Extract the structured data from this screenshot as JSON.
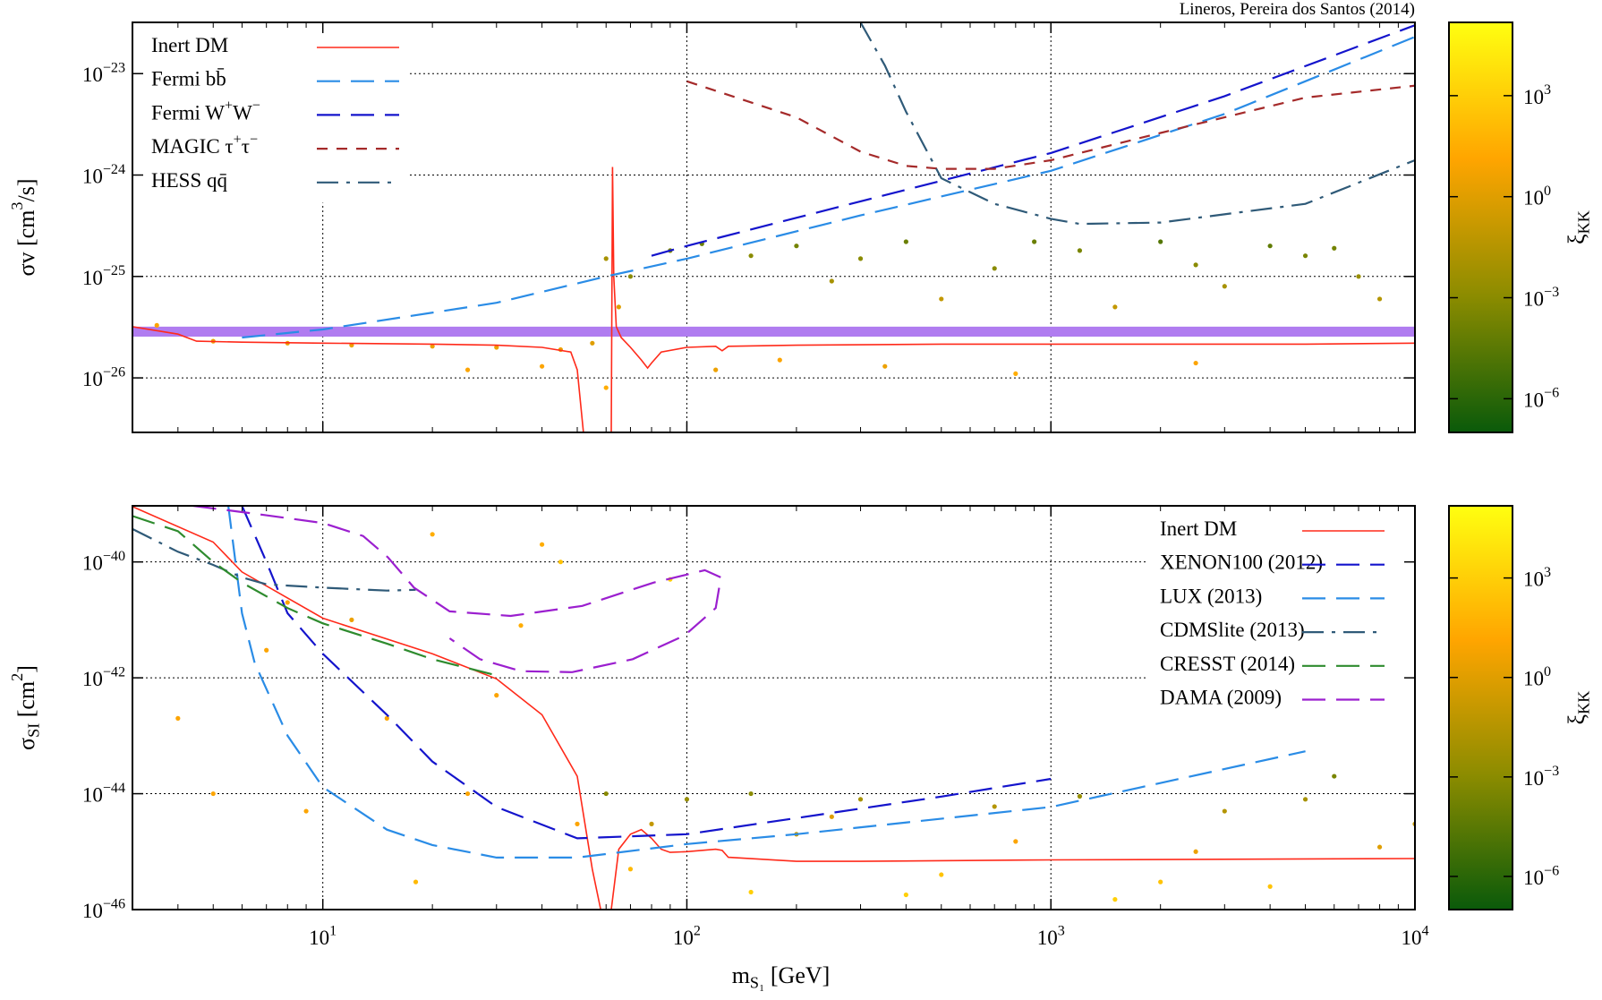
{
  "annotation": "Lineros, Pereira dos Santos (2014)",
  "chart_data": [
    {
      "type": "line",
      "xscale": "log",
      "yscale": "log",
      "grid": true,
      "legend": "upper left",
      "xlim": [
        3,
        10000
      ],
      "ylim": [
        2.9e-27,
        3.2e-23
      ],
      "xticks": [
        10,
        100,
        1000,
        10000
      ],
      "show_xticklabels": false,
      "xminorticks": [
        4,
        5,
        6,
        7,
        8,
        9,
        20,
        30,
        40,
        50,
        60,
        70,
        80,
        90,
        200,
        300,
        400,
        500,
        600,
        700,
        800,
        900,
        2000,
        3000,
        4000,
        5000,
        6000,
        7000,
        8000,
        9000
      ],
      "yticks": [
        {
          "value": 1e-23,
          "label": "10^{−23}"
        },
        {
          "value": 1e-24,
          "label": "10^{−24}"
        },
        {
          "value": 1e-25,
          "label": "10^{−25}"
        },
        {
          "value": 1e-26,
          "label": "10^{−26}"
        }
      ],
      "ylabel": "σv [cm^{3}/s]",
      "band": {
        "ymin": 2.55e-26,
        "ymax": 3.2e-26,
        "color": "#b07cf0"
      },
      "series": [
        {
          "name": "Inert DM",
          "color": "#ff2a1a",
          "dash": "solid",
          "x": [
            3,
            4,
            4.5,
            6,
            10,
            20,
            30,
            40,
            48,
            50,
            52,
            60,
            62,
            62.5,
            63,
            64,
            66,
            70,
            75,
            78,
            80,
            85,
            100,
            120,
            125,
            130,
            200,
            500,
            1000,
            5000,
            10000
          ],
          "values": [
            3.2e-26,
            2.7e-26,
            2.3e-26,
            2.25e-26,
            2.2e-26,
            2.15e-26,
            2.1e-26,
            2e-26,
            1.8e-26,
            1.2e-26,
            2.9e-27,
            null,
            2.9e-27,
            1.2e-24,
            1e-25,
            3.2e-26,
            2.5e-26,
            2e-26,
            1.5e-26,
            1.25e-26,
            1.4e-26,
            1.8e-26,
            2e-26,
            2.05e-26,
            1.85e-26,
            2.05e-26,
            2.1e-26,
            2.15e-26,
            2.15e-26,
            2.15e-26,
            2.2e-26
          ]
        },
        {
          "name": "Fermi bb̄",
          "color": "#2a8ce6",
          "dash": "long",
          "x": [
            6,
            10,
            30,
            60,
            100,
            300,
            1000,
            3000,
            10000
          ],
          "values": [
            2.5e-26,
            3e-26,
            5.5e-26,
            1e-25,
            1.5e-25,
            4e-25,
            1.1e-24,
            4e-24,
            2.3e-23
          ]
        },
        {
          "name": "Fermi W^{+}W^{−}",
          "color": "#1414cc",
          "dash": "long",
          "x": [
            80,
            100,
            300,
            1000,
            3000,
            10000
          ],
          "values": [
            1.6e-25,
            2e-25,
            5.5e-25,
            1.65e-24,
            6e-24,
            3e-23
          ]
        },
        {
          "name": "MAGIC τ^{+}τ^{−}",
          "color": "#a52a2a",
          "dash": "short",
          "x": [
            100,
            200,
            300,
            400,
            500,
            700,
            1000,
            2000,
            5000,
            10000
          ],
          "values": [
            8.4e-24,
            3.7e-24,
            1.7e-24,
            1.23e-24,
            1.15e-24,
            1.15e-24,
            1.4e-24,
            2.6e-24,
            5.8e-24,
            7.6e-24
          ]
        },
        {
          "name": "HESS qq̄",
          "color": "#2f5a78",
          "dash": "dashdot",
          "x": [
            300,
            350,
            400,
            500,
            700,
            1000,
            1200,
            2000,
            5000,
            10000
          ],
          "values": [
            3.2e-23,
            1.2e-23,
            4.2e-24,
            9.3e-25,
            5.2e-25,
            3.7e-25,
            3.3e-25,
            3.4e-25,
            5.2e-25,
            1.4e-24
          ]
        }
      ],
      "points": {
        "x": [
          3.5,
          5,
          8,
          12,
          20,
          30,
          45,
          55,
          60,
          65,
          70,
          90,
          110,
          150,
          200,
          250,
          300,
          400,
          500,
          700,
          900,
          1200,
          1500,
          2000,
          2500,
          3000,
          4000,
          5000,
          6000,
          7000,
          8000,
          120,
          180,
          350,
          800,
          2500,
          60,
          40,
          25
        ],
        "y": [
          3.3e-26,
          2.3e-26,
          2.2e-26,
          2.1e-26,
          2.05e-26,
          2e-26,
          1.9e-26,
          2.2e-26,
          1.5e-25,
          5e-26,
          1e-25,
          1.8e-25,
          2.1e-25,
          1.6e-25,
          2e-25,
          9e-26,
          1.5e-25,
          2.2e-25,
          6e-26,
          1.2e-25,
          2.2e-25,
          1.8e-25,
          5e-26,
          2.2e-25,
          1.3e-25,
          8e-26,
          2e-25,
          1.6e-25,
          1.9e-25,
          1e-25,
          6e-26,
          1.2e-26,
          1.5e-26,
          1.3e-26,
          1.1e-26,
          1.4e-26,
          8e-27,
          1.3e-26,
          1.2e-26
        ],
        "xi": [
          10,
          3,
          3,
          3,
          3,
          3,
          3,
          1,
          0.01,
          1,
          0.001,
          0.0003,
          0.0001,
          0.001,
          0.0002,
          0.01,
          0.001,
          0.0001,
          0.1,
          0.001,
          0.0001,
          0.0003,
          0.1,
          2e-05,
          0.001,
          0.01,
          5e-05,
          0.0003,
          0.0002,
          0.003,
          0.03,
          3,
          10,
          3,
          30,
          10,
          30,
          10,
          10
        ]
      },
      "zlim": [
        1e-07,
        150000.0
      ],
      "zticks": [
        {
          "value": 1000,
          "label": "10^{3}"
        },
        {
          "value": 1,
          "label": "10^{0}"
        },
        {
          "value": 0.001,
          "label": "10^{−3}"
        },
        {
          "value": 1e-06,
          "label": "10^{−6}"
        }
      ],
      "zlabel": "ξ_{KK}",
      "colormap": [
        "#0a5a0a",
        "#8c8c00",
        "#ffa500",
        "#ffff10"
      ]
    },
    {
      "type": "line",
      "xscale": "log",
      "yscale": "log",
      "grid": true,
      "legend": "upper right",
      "xlim": [
        3,
        10000
      ],
      "ylim": [
        1e-46,
        9.3e-40
      ],
      "xticks": [
        {
          "value": 10,
          "label": "10^{1}"
        },
        {
          "value": 100,
          "label": "10^{2}"
        },
        {
          "value": 1000,
          "label": "10^{3}"
        },
        {
          "value": 10000,
          "label": "10^{4}"
        }
      ],
      "show_xticklabels": true,
      "xminorticks": [
        4,
        5,
        6,
        7,
        8,
        9,
        20,
        30,
        40,
        50,
        60,
        70,
        80,
        90,
        200,
        300,
        400,
        500,
        600,
        700,
        800,
        900,
        2000,
        3000,
        4000,
        5000,
        6000,
        7000,
        8000,
        9000
      ],
      "yticks": [
        {
          "value": 1e-40,
          "label": "10^{−40}"
        },
        {
          "value": 1e-42,
          "label": "10^{−42}"
        },
        {
          "value": 1e-44,
          "label": "10^{−44}"
        },
        {
          "value": 1e-46,
          "label": "10^{−46}"
        }
      ],
      "ylabel": "σ_{SI} [cm^{2}]",
      "xlabel": "m_{S₁} [GeV]",
      "series": [
        {
          "name": "Inert DM",
          "color": "#ff2a1a",
          "dash": "solid",
          "x": [
            3,
            5,
            6,
            10,
            20,
            30,
            40,
            50,
            55,
            58,
            60,
            62,
            65,
            70,
            75,
            80,
            85,
            90,
            100,
            120,
            125,
            130,
            200,
            300,
            1000,
            10000
          ],
          "values": [
            9e-40,
            2.2e-40,
            6.7e-41,
            1.07e-41,
            2.6e-42,
            9.6e-43,
            2.3e-43,
            2e-44,
            5e-46,
            1e-46,
            null,
            1e-46,
            1.1e-45,
            2e-45,
            2.4e-45,
            1.7e-45,
            1.1e-45,
            9.7e-46,
            1e-45,
            1.1e-45,
            1.05e-45,
            8e-46,
            6.8e-46,
            6.8e-46,
            7.2e-46,
            7.6e-46
          ]
        },
        {
          "name": "XENON100 (2012)",
          "color": "#1414cc",
          "dash": "long",
          "x": [
            6,
            7,
            8,
            10,
            15,
            20,
            30,
            50,
            100,
            200,
            500,
            1000
          ],
          "values": [
            9.3e-40,
            1e-40,
            1.3e-41,
            2.6e-42,
            2.3e-43,
            3.6e-44,
            5.9e-45,
            1.7e-45,
            2e-45,
            3.8e-45,
            8.9e-45,
            1.8e-44
          ]
        },
        {
          "name": "LUX (2013)",
          "color": "#2a8ce6",
          "dash": "long",
          "x": [
            5.5,
            6,
            6.5,
            8,
            10,
            15,
            20,
            30,
            50,
            100,
            200,
            1000,
            5000
          ],
          "values": [
            9.3e-40,
            1.3e-41,
            1.8e-42,
            1e-43,
            1.3e-44,
            2.4e-45,
            1.3e-45,
            7.9e-46,
            7.9e-46,
            1.35e-45,
            2e-45,
            5.9e-45,
            5.4e-44
          ]
        },
        {
          "name": "CDMSlite (2013)",
          "color": "#2f5a78",
          "dash": "dashdot",
          "x": [
            3,
            4,
            5,
            6,
            7,
            10,
            15,
            18
          ],
          "values": [
            3.7e-40,
            1.5e-40,
            8.9e-41,
            5.4e-41,
            4.1e-41,
            3.6e-41,
            3.2e-41,
            3.3e-41
          ]
        },
        {
          "name": "CRESST (2014)",
          "color": "#2e8b2e",
          "dash": "long",
          "x": [
            3,
            4,
            5,
            6,
            8,
            10,
            15,
            20,
            30
          ],
          "values": [
            6.2e-40,
            3.4e-40,
            1e-40,
            4.4e-41,
            1.6e-41,
            8.7e-42,
            3.9e-42,
            2.1e-42,
            1.1e-42
          ]
        },
        {
          "name": "DAMA (2009)",
          "color": "#9b1fcf",
          "dash": "long",
          "x": [
            4.4,
            6.5,
            10,
            12.9,
            15.1,
            17.8,
            22.3,
            32.8,
            51.6,
            81,
            112,
            124,
            120,
            98.6,
            71,
            48.4,
            35,
            27,
            22.3
          ],
          "values": [
            9.3e-40,
            6.8e-40,
            4.7e-40,
            2.8e-40,
            1.2e-40,
            3.6e-41,
            1.4e-41,
            1.17e-41,
            1.74e-41,
            4.4e-41,
            7.2e-41,
            5.4e-41,
            1.6e-41,
            5.4e-42,
            2.1e-42,
            1.25e-42,
            1.3e-42,
            2.1e-42,
            4.8e-42
          ]
        }
      ],
      "points": {
        "x": [
          4,
          5,
          7,
          9,
          12,
          15,
          20,
          25,
          30,
          40,
          50,
          35,
          18,
          8,
          60,
          70,
          80,
          100,
          150,
          200,
          300,
          500,
          800,
          1200,
          2000,
          3000,
          5000,
          8000,
          10000,
          150,
          400,
          1500,
          4000,
          6000,
          250,
          700,
          2500,
          90,
          45
        ],
        "y": [
          2e-43,
          1e-44,
          3e-42,
          5e-45,
          1e-41,
          2e-43,
          3e-40,
          1e-44,
          5e-43,
          2e-40,
          3e-45,
          8e-42,
          3e-46,
          2e-41,
          1e-44,
          5e-46,
          3e-45,
          8e-45,
          1e-44,
          2e-45,
          8e-45,
          4e-46,
          1.5e-45,
          9e-45,
          3e-46,
          5e-45,
          8e-45,
          1.2e-45,
          3e-45,
          2e-46,
          1.8e-46,
          1.5e-46,
          2.5e-46,
          2e-44,
          4e-45,
          6e-45,
          1e-45,
          5e-41,
          1e-40
        ],
        "xi": [
          10,
          10,
          10,
          10,
          3,
          10,
          30,
          10,
          10,
          30,
          10,
          30,
          100,
          10,
          0.001,
          100,
          0.1,
          0.003,
          0.001,
          0.1,
          0.01,
          300,
          10,
          0.003,
          300,
          0.03,
          0.01,
          1,
          0.1,
          1000,
          1000,
          1000,
          300,
          0.0003,
          1,
          0.03,
          3,
          1000,
          300
        ]
      },
      "zlim": [
        1e-07,
        150000.0
      ],
      "zticks": [
        {
          "value": 1000,
          "label": "10^{3}"
        },
        {
          "value": 1,
          "label": "10^{0}"
        },
        {
          "value": 0.001,
          "label": "10^{−3}"
        },
        {
          "value": 1e-06,
          "label": "10^{−6}"
        }
      ],
      "zlabel": "ξ_{KK}",
      "colormap": [
        "#0a5a0a",
        "#8c8c00",
        "#ffa500",
        "#ffff10"
      ]
    }
  ]
}
